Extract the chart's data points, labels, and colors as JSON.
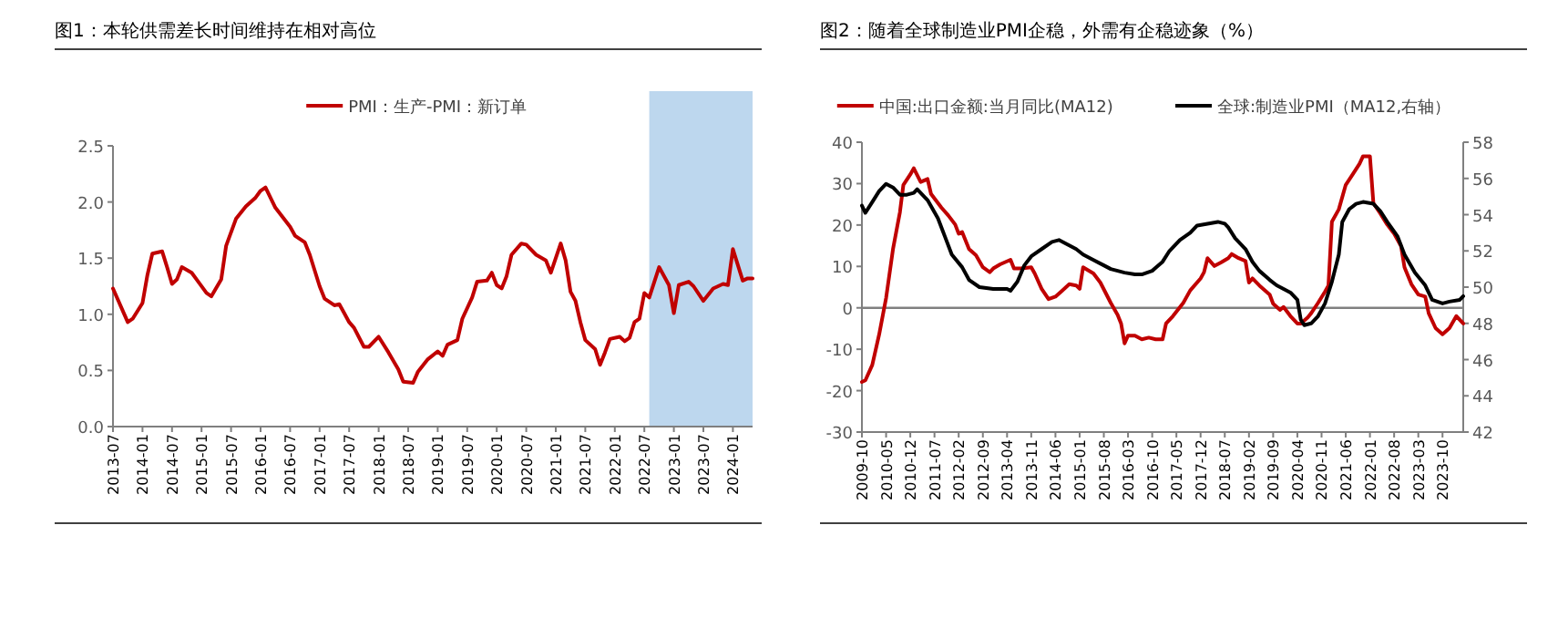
{
  "chart_data": [
    {
      "type": "line",
      "title": "图1：本轮供需差长时间维持在相对高位",
      "legend": "top",
      "series": [
        {
          "name": "PMI：生产-PMI：新订单",
          "color": "#c00000",
          "x": [
            "2013-07",
            "2013-10",
            "2013-11",
            "2014-01",
            "2014-02",
            "2014-03",
            "2014-05",
            "2014-06",
            "2014-07",
            "2014-08",
            "2014-09",
            "2014-11",
            "2014-12",
            "2015-02",
            "2015-03",
            "2015-05",
            "2015-06",
            "2015-08",
            "2015-10",
            "2015-12",
            "2016-01",
            "2016-02",
            "2016-04",
            "2016-07",
            "2016-08",
            "2016-10",
            "2016-11",
            "2017-01",
            "2017-02",
            "2017-04",
            "2017-05",
            "2017-06",
            "2017-07",
            "2017-08",
            "2017-10",
            "2017-11",
            "2018-01",
            "2018-03",
            "2018-05",
            "2018-06",
            "2018-08",
            "2018-09",
            "2018-11",
            "2019-01",
            "2019-02",
            "2019-03",
            "2019-05",
            "2019-06",
            "2019-08",
            "2019-09",
            "2019-11",
            "2019-12",
            "2020-01",
            "2020-02",
            "2020-03",
            "2020-04",
            "2020-06",
            "2020-07",
            "2020-09",
            "2020-11",
            "2020-12",
            "2021-02",
            "2021-03",
            "2021-04",
            "2021-05",
            "2021-06",
            "2021-07",
            "2021-09",
            "2021-10",
            "2021-11",
            "2021-12",
            "2022-02",
            "2022-03",
            "2022-04",
            "2022-05",
            "2022-06",
            "2022-07",
            "2022-08",
            "2022-10",
            "2022-12",
            "2023-01",
            "2023-02",
            "2023-04",
            "2023-05",
            "2023-07",
            "2023-09",
            "2023-11",
            "2023-12",
            "2024-01",
            "2024-03",
            "2024-04",
            "2024-05"
          ],
          "values": [
            1.23,
            0.93,
            0.96,
            1.1,
            1.35,
            1.54,
            1.56,
            1.42,
            1.27,
            1.31,
            1.42,
            1.37,
            1.31,
            1.19,
            1.16,
            1.31,
            1.61,
            1.85,
            1.96,
            2.04,
            2.1,
            2.13,
            1.95,
            1.78,
            1.7,
            1.64,
            1.53,
            1.25,
            1.14,
            1.08,
            1.09,
            1.01,
            0.93,
            0.88,
            0.71,
            0.71,
            0.8,
            0.66,
            0.51,
            0.4,
            0.39,
            0.49,
            0.6,
            0.67,
            0.63,
            0.73,
            0.77,
            0.96,
            1.15,
            1.29,
            1.3,
            1.37,
            1.26,
            1.23,
            1.34,
            1.53,
            1.63,
            1.62,
            1.53,
            1.48,
            1.37,
            1.63,
            1.48,
            1.2,
            1.12,
            0.93,
            0.77,
            0.69,
            0.55,
            0.66,
            0.78,
            0.8,
            0.76,
            0.79,
            0.93,
            0.96,
            1.19,
            1.15,
            1.42,
            1.26,
            1.01,
            1.26,
            1.29,
            1.25,
            1.12,
            1.23,
            1.27,
            1.26,
            1.58,
            1.3,
            1.32,
            1.32
          ]
        }
      ],
      "xlim": [
        "2013-07",
        "2024-05"
      ],
      "xticks": [
        "2013-07",
        "2014-01",
        "2014-07",
        "2015-01",
        "2015-07",
        "2016-01",
        "2016-07",
        "2017-01",
        "2017-07",
        "2018-01",
        "2018-07",
        "2019-01",
        "2019-07",
        "2020-01",
        "2020-07",
        "2021-01",
        "2021-07",
        "2022-01",
        "2022-07",
        "2023-01",
        "2023-07",
        "2024-01"
      ],
      "ylim": [
        0,
        2.5
      ],
      "yticks": [
        {
          "value": 0,
          "label": "0.0"
        },
        0.5,
        {
          "value": 1,
          "label": "1.0"
        },
        1.5,
        {
          "value": 2,
          "label": "2.0"
        },
        2.5
      ],
      "bands": [
        {
          "axis": "x",
          "from": "2022-08",
          "to": "2024-05",
          "color": "#bdd7ee"
        }
      ]
    },
    {
      "type": "line",
      "title": "图2：随着全球制造业PMI企稳，外需有企稳迹象（%）",
      "legend": "top",
      "series": [
        {
          "name": "中国:出口金额:当月同比(MA12)",
          "color": "#c00000",
          "x": [
            "2009-10",
            "2009-11",
            "2010-01",
            "2010-03",
            "2010-05",
            "2010-07",
            "2010-09",
            "2010-10",
            "2010-12",
            "2011-01",
            "2011-03",
            "2011-05",
            "2011-06",
            "2011-09",
            "2011-11",
            "2012-01",
            "2012-02",
            "2012-03",
            "2012-05",
            "2012-07",
            "2012-09",
            "2012-11",
            "2012-12",
            "2013-02",
            "2013-05",
            "2013-06",
            "2013-08",
            "2013-11",
            "2013-12",
            "2014-02",
            "2014-04",
            "2014-06",
            "2014-08",
            "2014-10",
            "2014-12",
            "2015-01",
            "2015-02",
            "2015-05",
            "2015-07",
            "2015-10",
            "2015-12",
            "2016-01",
            "2016-02",
            "2016-03",
            "2016-05",
            "2016-07",
            "2016-09",
            "2016-11",
            "2017-01",
            "2017-02",
            "2017-04",
            "2017-07",
            "2017-09",
            "2017-12",
            "2018-01",
            "2018-02",
            "2018-04",
            "2018-06",
            "2018-08",
            "2018-09",
            "2018-11",
            "2019-01",
            "2019-02",
            "2019-03",
            "2019-05",
            "2019-08",
            "2019-09",
            "2019-11",
            "2019-12",
            "2020-02",
            "2020-04",
            "2020-05",
            "2020-07",
            "2020-08",
            "2020-10",
            "2020-12",
            "2021-01",
            "2021-02",
            "2021-04",
            "2021-06",
            "2021-08",
            "2021-10",
            "2021-11",
            "2022-01",
            "2022-02",
            "2022-04",
            "2022-06",
            "2022-08",
            "2022-10",
            "2022-11",
            "2023-01",
            "2023-03",
            "2023-05",
            "2023-06",
            "2023-08",
            "2023-10",
            "2023-12",
            "2024-02",
            "2024-04"
          ],
          "values": [
            -17.9,
            -17.5,
            -13.8,
            -6.4,
            2.4,
            14.2,
            23.1,
            29.7,
            32.2,
            33.7,
            30.4,
            31.1,
            27.5,
            24.2,
            22.3,
            20.1,
            17.9,
            18.3,
            14.2,
            12.7,
            9.8,
            8.6,
            9.5,
            10.5,
            11.6,
            9.5,
            9.5,
            9.8,
            8.3,
            4.6,
            2.1,
            2.7,
            4.2,
            5.7,
            5.4,
            4.6,
            9.8,
            8.3,
            6.1,
            1.2,
            -1.7,
            -3.8,
            -8.6,
            -6.7,
            -6.7,
            -7.6,
            -7.2,
            -7.6,
            -7.6,
            -3.8,
            -2.0,
            1.2,
            4.2,
            7.1,
            8.6,
            12.0,
            10.1,
            11.0,
            12.0,
            13.0,
            12.0,
            11.3,
            6.1,
            7.1,
            5.4,
            3.2,
            1.0,
            -0.5,
            0.2,
            -2.0,
            -3.8,
            -3.8,
            -2.3,
            -1.3,
            1.2,
            3.9,
            5.4,
            20.8,
            23.8,
            29.7,
            32.2,
            34.8,
            36.6,
            36.6,
            25.3,
            22.8,
            20.1,
            17.9,
            14.9,
            9.8,
            5.7,
            3.2,
            2.7,
            -1.3,
            -4.9,
            -6.4,
            -4.9,
            -2.0,
            -3.8
          ]
        },
        {
          "name": "全球:制造业PMI（MA12,右轴）",
          "color": "#000000",
          "axis": "y2",
          "x": [
            "2009-10",
            "2009-11",
            "2010-01",
            "2010-03",
            "2010-05",
            "2010-07",
            "2010-09",
            "2010-11",
            "2011-01",
            "2011-02",
            "2011-05",
            "2011-08",
            "2011-10",
            "2011-12",
            "2012-03",
            "2012-05",
            "2012-08",
            "2012-12",
            "2013-04",
            "2013-05",
            "2013-07",
            "2013-09",
            "2013-11",
            "2014-02",
            "2014-05",
            "2014-07",
            "2014-09",
            "2014-12",
            "2015-02",
            "2015-05",
            "2015-08",
            "2015-10",
            "2016-02",
            "2016-05",
            "2016-07",
            "2016-10",
            "2017-01",
            "2017-03",
            "2017-06",
            "2017-09",
            "2017-11",
            "2018-02",
            "2018-05",
            "2018-07",
            "2018-08",
            "2018-10",
            "2019-01",
            "2019-03",
            "2019-05",
            "2019-08",
            "2019-10",
            "2019-12",
            "2020-02",
            "2020-04",
            "2020-05",
            "2020-06",
            "2020-08",
            "2020-10",
            "2020-12",
            "2021-02",
            "2021-04",
            "2021-05",
            "2021-07",
            "2021-09",
            "2021-11",
            "2022-02",
            "2022-04",
            "2022-06",
            "2022-09",
            "2022-11",
            "2023-02",
            "2023-05",
            "2023-07",
            "2023-10",
            "2023-12",
            "2024-03",
            "2024-04"
          ],
          "values": [
            54.5,
            54.1,
            54.7,
            55.3,
            55.7,
            55.5,
            55.1,
            55.1,
            55.2,
            55.4,
            54.8,
            53.8,
            52.8,
            51.8,
            51.1,
            50.4,
            50.0,
            49.9,
            49.9,
            49.8,
            50.3,
            51.2,
            51.7,
            52.1,
            52.5,
            52.6,
            52.4,
            52.1,
            51.8,
            51.5,
            51.2,
            51.0,
            50.8,
            50.7,
            50.7,
            50.9,
            51.4,
            52.0,
            52.6,
            53.0,
            53.4,
            53.5,
            53.6,
            53.5,
            53.3,
            52.7,
            52.1,
            51.4,
            50.9,
            50.4,
            50.1,
            49.9,
            49.7,
            49.3,
            48.2,
            47.9,
            48.0,
            48.4,
            49.1,
            50.3,
            51.8,
            53.6,
            54.3,
            54.6,
            54.7,
            54.6,
            54.2,
            53.6,
            52.8,
            51.8,
            50.8,
            50.1,
            49.3,
            49.1,
            49.2,
            49.3,
            49.5
          ]
        }
      ],
      "xlim": [
        "2009-10",
        "2024-04"
      ],
      "xticks": [
        "2009-10",
        "2010-05",
        "2010-12",
        "2011-07",
        "2012-02",
        "2012-09",
        "2013-04",
        "2013-11",
        "2014-06",
        "2015-01",
        "2015-08",
        "2016-03",
        "2016-10",
        "2017-05",
        "2017-12",
        "2018-07",
        "2019-02",
        "2019-09",
        "2020-04",
        "2020-11",
        "2021-06",
        "2022-01",
        "2022-08",
        "2023-03",
        "2023-10"
      ],
      "ylim": [
        -30,
        40
      ],
      "yticks": [
        -30,
        -20,
        -10,
        0,
        10,
        20,
        30,
        40
      ],
      "y2lim": [
        42,
        58
      ],
      "y2ticks": [
        42,
        44,
        46,
        48,
        50,
        52,
        54,
        56,
        58
      ],
      "ref_lines": [
        {
          "axis": "y",
          "value": 0,
          "color": "#808080"
        }
      ]
    }
  ]
}
